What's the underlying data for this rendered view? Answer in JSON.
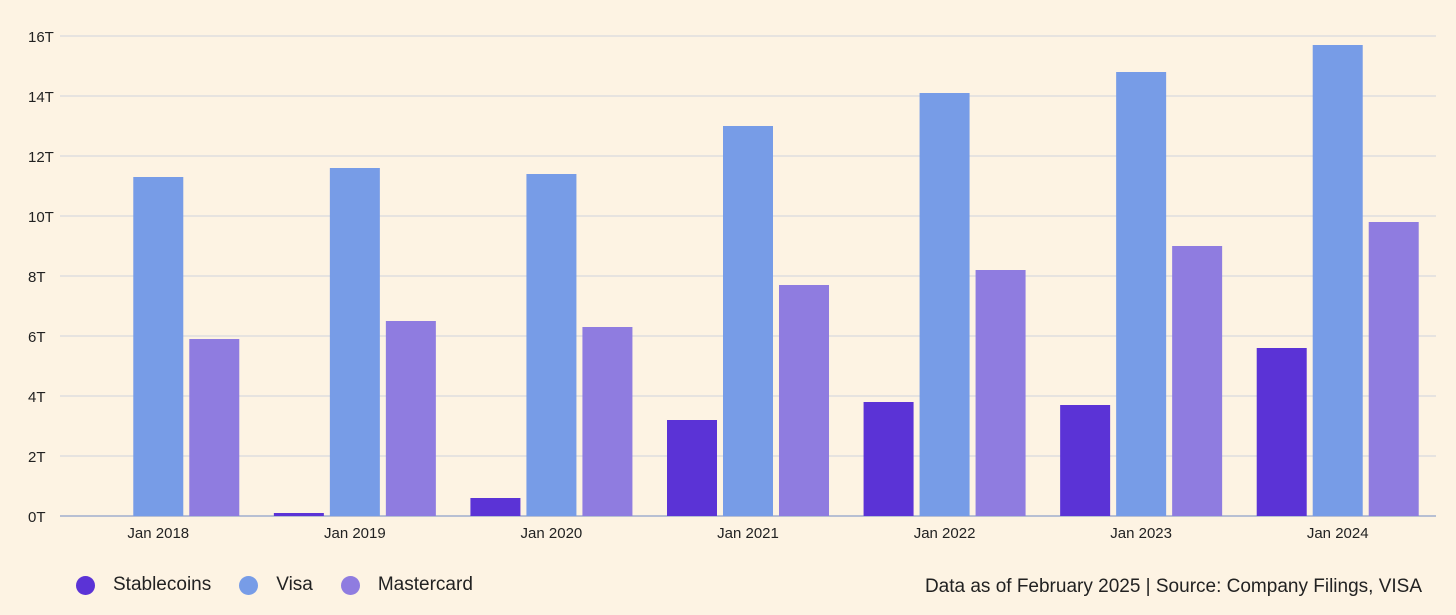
{
  "chart_data": {
    "type": "bar",
    "categories": [
      "Jan 2018",
      "Jan 2019",
      "Jan 2020",
      "Jan 2021",
      "Jan 2022",
      "Jan 2023",
      "Jan 2024"
    ],
    "series": [
      {
        "name": "Stablecoins",
        "color": "#5b33d6",
        "values": [
          0,
          0.1,
          0.6,
          3.2,
          3.8,
          3.7,
          5.6
        ]
      },
      {
        "name": "Visa",
        "color": "#779ce7",
        "values": [
          11.3,
          11.6,
          11.4,
          13.0,
          14.1,
          14.8,
          15.7
        ]
      },
      {
        "name": "Mastercard",
        "color": "#8f7ce0",
        "values": [
          5.9,
          6.5,
          6.3,
          7.7,
          8.2,
          9.0,
          9.8
        ]
      }
    ],
    "y_ticks": [
      "0T",
      "2T",
      "4T",
      "6T",
      "8T",
      "10T",
      "12T",
      "14T",
      "16T"
    ],
    "ylim": [
      0,
      16
    ],
    "grid": true,
    "legend_position": "bottom-left"
  },
  "footer": {
    "source": "Data as of February 2025 | Source: Company Filings, VISA"
  }
}
